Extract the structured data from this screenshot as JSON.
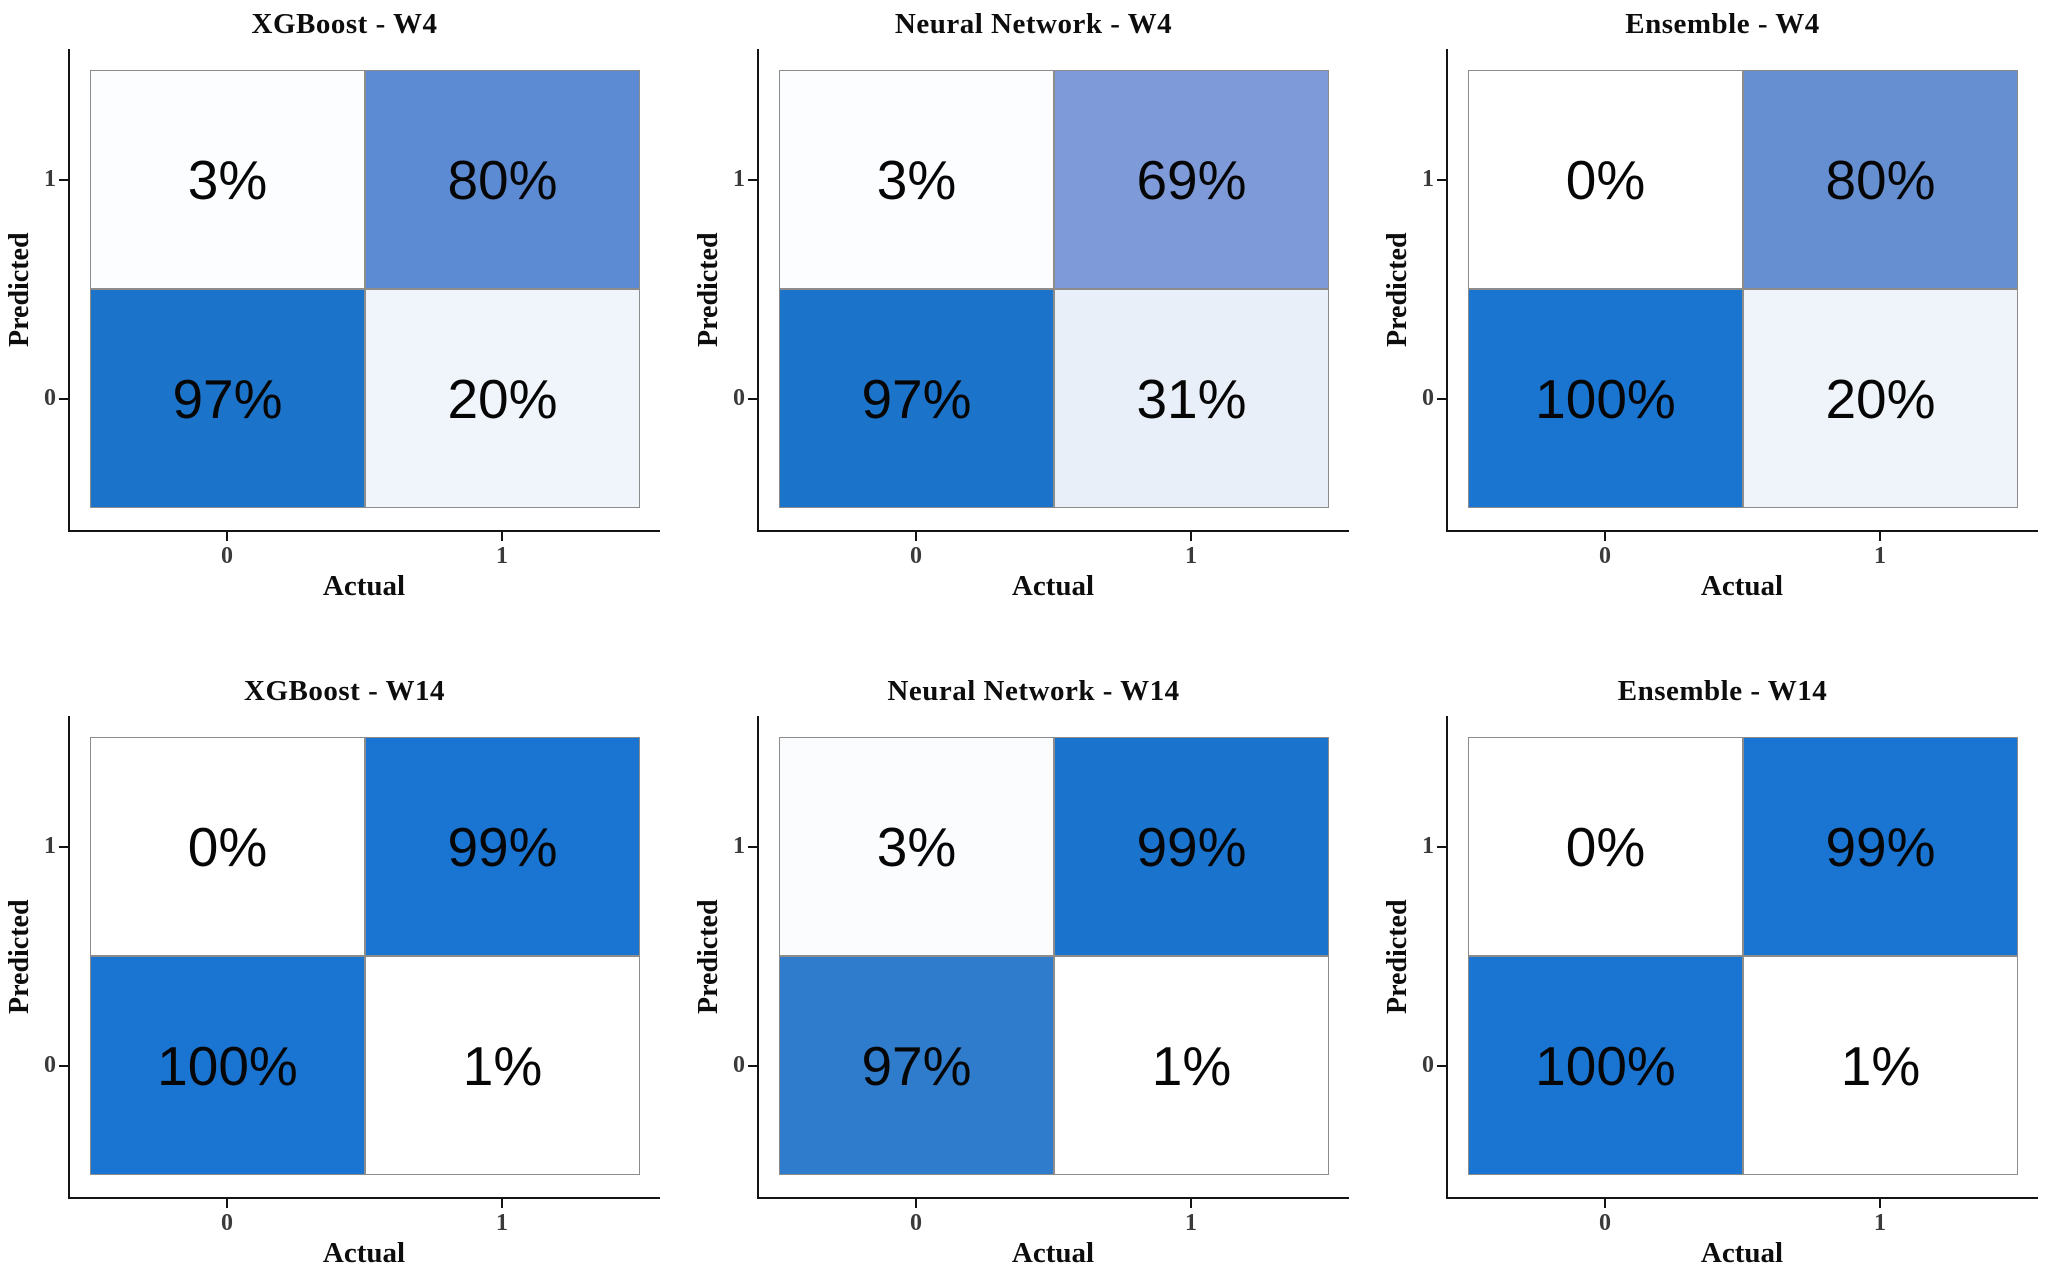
{
  "figure": {
    "x_label": "Actual",
    "y_label": "Predicted",
    "x_ticks": [
      "0",
      "1"
    ],
    "y_ticks": [
      "1",
      "0"
    ]
  },
  "panels": [
    {
      "title": "XGBoost - W4",
      "cells": [
        {
          "label": "3%",
          "color": "#FBFDFF"
        },
        {
          "label": "80%",
          "color": "#5C8BD3"
        },
        {
          "label": "97%",
          "color": "#1C74CA"
        },
        {
          "label": "20%",
          "color": "#F0F5FC"
        }
      ]
    },
    {
      "title": "Neural Network - W4",
      "cells": [
        {
          "label": "3%",
          "color": "#FBFDFF"
        },
        {
          "label": "69%",
          "color": "#7E9AD8"
        },
        {
          "label": "97%",
          "color": "#1C74CA"
        },
        {
          "label": "31%",
          "color": "#E9EFF9"
        }
      ]
    },
    {
      "title": "Ensemble - W4",
      "cells": [
        {
          "label": "0%",
          "color": "#FFFFFF"
        },
        {
          "label": "80%",
          "color": "#668FD2"
        },
        {
          "label": "100%",
          "color": "#1A75D0"
        },
        {
          "label": "20%",
          "color": "#EFF4FB"
        }
      ]
    },
    {
      "title": "XGBoost - W14",
      "cells": [
        {
          "label": "0%",
          "color": "#FFFFFF"
        },
        {
          "label": "99%",
          "color": "#1975D1"
        },
        {
          "label": "100%",
          "color": "#1975D1"
        },
        {
          "label": "1%",
          "color": "#FFFFFF"
        }
      ]
    },
    {
      "title": "Neural Network - W14",
      "cells": [
        {
          "label": "3%",
          "color": "#FAFCFE"
        },
        {
          "label": "99%",
          "color": "#1A74CD"
        },
        {
          "label": "97%",
          "color": "#2F7CCD"
        },
        {
          "label": "1%",
          "color": "#FFFFFF"
        }
      ]
    },
    {
      "title": "Ensemble - W14",
      "cells": [
        {
          "label": "0%",
          "color": "#FFFFFF"
        },
        {
          "label": "99%",
          "color": "#1975D1"
        },
        {
          "label": "100%",
          "color": "#1975D1"
        },
        {
          "label": "1%",
          "color": "#FFFFFF"
        }
      ]
    }
  ],
  "chart_data": [
    {
      "type": "heatmap",
      "title": "XGBoost - W4",
      "xlabel": "Actual",
      "ylabel": "Predicted",
      "x_categories": [
        "0",
        "1"
      ],
      "y_categories": [
        "1",
        "0"
      ],
      "values_pct": [
        [
          3,
          80
        ],
        [
          97,
          20
        ]
      ],
      "legend": "none",
      "grid": false
    },
    {
      "type": "heatmap",
      "title": "Neural Network - W4",
      "xlabel": "Actual",
      "ylabel": "Predicted",
      "x_categories": [
        "0",
        "1"
      ],
      "y_categories": [
        "1",
        "0"
      ],
      "values_pct": [
        [
          3,
          69
        ],
        [
          97,
          31
        ]
      ],
      "legend": "none",
      "grid": false
    },
    {
      "type": "heatmap",
      "title": "Ensemble - W4",
      "xlabel": "Actual",
      "ylabel": "Predicted",
      "x_categories": [
        "0",
        "1"
      ],
      "y_categories": [
        "1",
        "0"
      ],
      "values_pct": [
        [
          0,
          80
        ],
        [
          100,
          20
        ]
      ],
      "legend": "none",
      "grid": false
    },
    {
      "type": "heatmap",
      "title": "XGBoost - W14",
      "xlabel": "Actual",
      "ylabel": "Predicted",
      "x_categories": [
        "0",
        "1"
      ],
      "y_categories": [
        "1",
        "0"
      ],
      "values_pct": [
        [
          0,
          99
        ],
        [
          100,
          1
        ]
      ],
      "legend": "none",
      "grid": false
    },
    {
      "type": "heatmap",
      "title": "Neural Network - W14",
      "xlabel": "Actual",
      "ylabel": "Predicted",
      "x_categories": [
        "0",
        "1"
      ],
      "y_categories": [
        "1",
        "0"
      ],
      "values_pct": [
        [
          3,
          99
        ],
        [
          97,
          1
        ]
      ],
      "legend": "none",
      "grid": false
    },
    {
      "type": "heatmap",
      "title": "Ensemble - W14",
      "xlabel": "Actual",
      "ylabel": "Predicted",
      "x_categories": [
        "0",
        "1"
      ],
      "y_categories": [
        "1",
        "0"
      ],
      "values_pct": [
        [
          0,
          99
        ],
        [
          100,
          1
        ]
      ],
      "legend": "none",
      "grid": false
    }
  ]
}
